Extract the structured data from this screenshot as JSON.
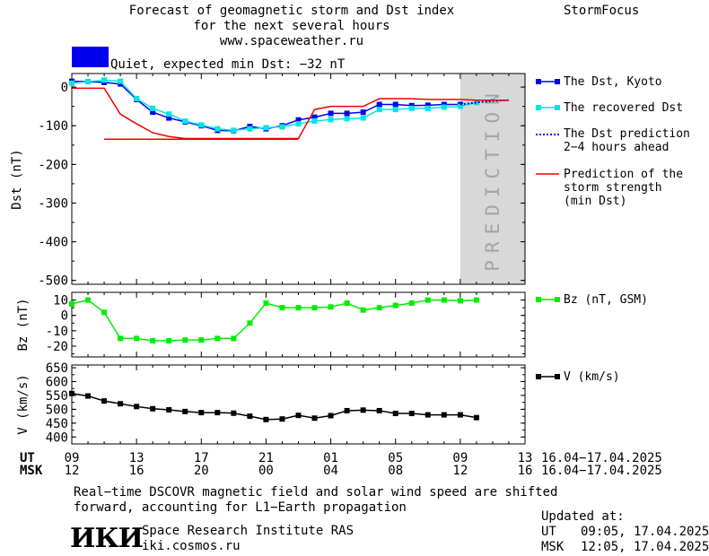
{
  "header": {
    "title_line1": "Forecast of geomagnetic storm and Dst index",
    "title_line2": "for the next several hours",
    "url": "www.spaceweather.ru",
    "brand": "StormFocus"
  },
  "status": {
    "color": "#0000ee",
    "text": "Quiet, expected min Dst: −32 nT"
  },
  "prediction_label": "PREDICTION",
  "time_axis": {
    "ut_label": "UT",
    "msk_label": "MSK",
    "ut_ticks": [
      "09",
      "13",
      "17",
      "21",
      "01",
      "05",
      "09",
      "13"
    ],
    "msk_ticks": [
      "12",
      "16",
      "20",
      "00",
      "04",
      "08",
      "12",
      "16"
    ],
    "ut_range": "16.04−17.04.2025",
    "msk_range": "16.04−17.04.2025"
  },
  "footer": {
    "note_line1": "Real−time DSCOVR magnetic field and solar wind speed are shifted",
    "note_line2": "forward, accounting for L1−Earth propagation",
    "logo": "ИКИ",
    "institute": "Space Research Institute RAS",
    "site": "iki.cosmos.ru",
    "updated_label": "Updated at:",
    "updated_ut_label": "UT",
    "updated_ut": "09:05, 17.04.2025",
    "updated_msk_label": "MSK",
    "updated_msk": "12:05, 17.04.2025"
  },
  "chart_data": [
    {
      "type": "line",
      "panel": "dst",
      "ylabel": "Dst (nT)",
      "ylim": [
        -510,
        35
      ],
      "yticks": [
        0,
        -100,
        -200,
        -300,
        -400,
        -500
      ],
      "xlim_hours": [
        0,
        28
      ],
      "prediction_start_hour": 24,
      "series": [
        {
          "name": "The Dst, Kyoto",
          "color": "#0000ee",
          "marker": "square",
          "x": [
            0,
            1,
            2,
            3,
            4,
            5,
            6,
            7,
            8,
            9,
            10,
            11,
            12,
            13,
            14,
            15,
            16,
            17,
            18,
            19,
            20,
            21,
            22,
            23,
            24
          ],
          "y": [
            15,
            14,
            12,
            8,
            -32,
            -65,
            -80,
            -90,
            -100,
            -112,
            -113,
            -102,
            -108,
            -100,
            -85,
            -78,
            -68,
            -68,
            -65,
            -45,
            -45,
            -48,
            -47,
            -45,
            -45
          ]
        },
        {
          "name": "The recovered Dst",
          "color": "#00e5e5",
          "marker": "square",
          "x": [
            0,
            1,
            2,
            3,
            4,
            5,
            6,
            7,
            8,
            9,
            10,
            11,
            12,
            13,
            14,
            15,
            16,
            17,
            18,
            19,
            20,
            21,
            22,
            23,
            24,
            25
          ],
          "y": [
            10,
            14,
            18,
            15,
            -30,
            -55,
            -70,
            -88,
            -98,
            -108,
            -112,
            -108,
            -105,
            -103,
            -95,
            -88,
            -84,
            -82,
            -80,
            -58,
            -58,
            -55,
            -55,
            -52,
            -50,
            -40
          ]
        },
        {
          "name": "The Dst prediction\n2−4 hours ahead",
          "color": "#0000ee",
          "dash": true,
          "x": [
            24,
            25,
            26,
            27
          ],
          "y": [
            -45,
            -40,
            -36,
            -34
          ]
        },
        {
          "name": "Prediction of the\nstorm strength\n(min Dst)",
          "color": "#ee0000",
          "x": [
            0,
            2,
            3,
            4,
            5,
            6,
            7,
            8,
            9,
            10,
            11,
            12,
            13,
            14,
            15,
            16,
            17,
            18,
            19,
            20,
            21,
            22,
            23,
            24,
            25,
            26,
            27
          ],
          "y": [
            -3,
            -3,
            -70,
            -95,
            -118,
            -128,
            -133,
            -133,
            -133,
            -133,
            -133,
            -133,
            -133,
            -133,
            -58,
            -50,
            -50,
            -50,
            -30,
            -30,
            -30,
            -32,
            -32,
            -32,
            -34,
            -34,
            -34
          ]
        },
        {
          "name": "",
          "color": "#ee0000",
          "x": [
            2,
            14
          ],
          "y": [
            -135,
            -135
          ]
        }
      ]
    },
    {
      "type": "line",
      "panel": "bz",
      "ylabel": "Bz (nT)",
      "ylim": [
        -27,
        15
      ],
      "yticks": [
        10,
        0,
        -10,
        -20
      ],
      "xlim_hours": [
        0,
        28
      ],
      "series": [
        {
          "name": "Bz (nT, GSM)",
          "color": "#00ee00",
          "marker": "square",
          "x": [
            0,
            1,
            2,
            3,
            4,
            5,
            6,
            7,
            8,
            9,
            10,
            11,
            12,
            13,
            14,
            15,
            16,
            17,
            18,
            19,
            20,
            21,
            22,
            23,
            24,
            25
          ],
          "y": [
            7.5,
            10,
            2,
            -15,
            -15,
            -16.5,
            -16.5,
            -16,
            -16,
            -15,
            -15,
            -5,
            8,
            5,
            5,
            5,
            5.5,
            8,
            3.5,
            5,
            6.5,
            8,
            10,
            10,
            9.5,
            10
          ]
        }
      ]
    },
    {
      "type": "line",
      "panel": "v",
      "ylabel": "V (km/s)",
      "ylim": [
        375,
        660
      ],
      "yticks": [
        650,
        600,
        550,
        500,
        450,
        400
      ],
      "xlim_hours": [
        0,
        28
      ],
      "series": [
        {
          "name": "V (km/s)",
          "color": "#000000",
          "marker": "square",
          "x": [
            0,
            1,
            2,
            3,
            4,
            5,
            6,
            7,
            8,
            9,
            10,
            11,
            12,
            13,
            14,
            15,
            16,
            17,
            18,
            19,
            20,
            21,
            22,
            23,
            24,
            25
          ],
          "y": [
            557,
            548,
            530,
            520,
            510,
            502,
            498,
            492,
            488,
            488,
            486,
            475,
            463,
            465,
            478,
            468,
            477,
            495,
            497,
            495,
            485,
            485,
            480,
            480,
            480,
            470
          ]
        }
      ]
    }
  ]
}
